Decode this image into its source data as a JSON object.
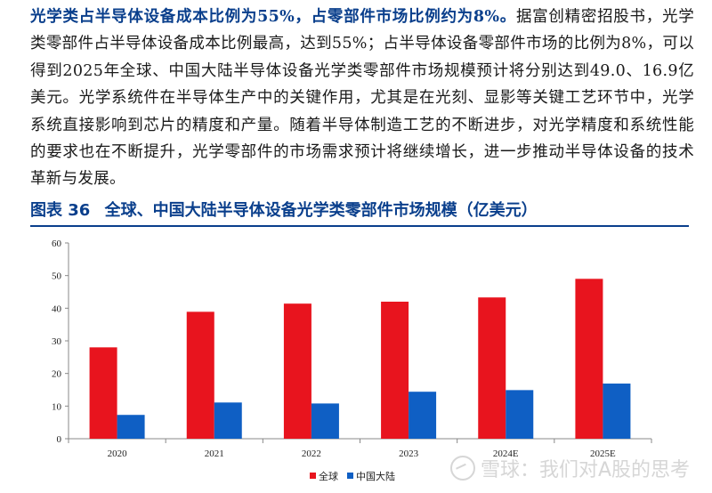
{
  "text": {
    "lead": "光学类占半导体设备成本比例为55%，占零部件市场比例约为8%。",
    "body": "据富创精密招股书，光学类零部件占半导体设备成本比例最高，达到55%；占半导体设备零部件市场的比例为8%，可以得到2025年全球、中国大陆半导体设备光学类零部件市场规模预计将分别达到49.0、16.9亿美元。光学系统件在半导体生产中的关键作用，尤其是在光刻、显影等关键工艺环节中，光学系统直接影响到芯片的精度和产量。随着半导体制造工艺的不断进步，对光学精度和系统性能的要求也在不断提升，光学零部件的市场需求预计将继续增长，进一步推动半导体设备的技术革新与发展。"
  },
  "figure": {
    "number": "图表 36",
    "title": "全球、中国大陆半导体设备光学类零部件市场规模（亿美元）"
  },
  "watermark": {
    "text": "雪球：我们对A股的思考",
    "icon": "snowball-logo-icon"
  },
  "chart_data": {
    "type": "bar",
    "categories": [
      "2020",
      "2021",
      "2022",
      "2023",
      "2024E",
      "2025E"
    ],
    "series": [
      {
        "name": "全球",
        "color": "#e8141e",
        "values": [
          28.0,
          38.9,
          41.4,
          42.0,
          43.3,
          49.0
        ]
      },
      {
        "name": "中国大陆",
        "color": "#0f5fc4",
        "values": [
          7.3,
          11.1,
          10.8,
          14.4,
          14.9,
          16.9
        ]
      }
    ],
    "title": "",
    "xlabel": "",
    "ylabel": "",
    "ylim": [
      0,
      60
    ],
    "yticks": [
      0,
      10,
      20,
      30,
      40,
      50,
      60
    ],
    "grid": false,
    "legend": "bottom-center"
  }
}
